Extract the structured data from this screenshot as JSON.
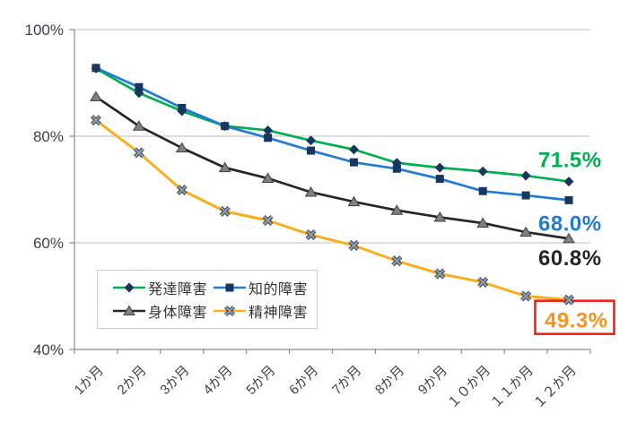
{
  "chart_data": {
    "type": "line",
    "title": "",
    "xlabel": "",
    "ylabel": "",
    "categories": [
      "1か月",
      "2か月",
      "3か月",
      "4か月",
      "5か月",
      "6か月",
      "7か月",
      "8か月",
      "9か月",
      "１０か月",
      "１１か月",
      "１２か月"
    ],
    "ylim": [
      40,
      100
    ],
    "yticks": [
      100,
      80,
      60,
      40
    ],
    "ytick_labels": [
      "100%",
      "80%",
      "60%",
      "40%"
    ],
    "grid": true,
    "legend_position": "bottom-left-inside",
    "colors": {
      "grid": "#c9c9c9",
      "axis": "#8c8c8c",
      "tick_label": "#3a4150",
      "x_label": "#404040",
      "marker_navy": "#17375e",
      "marker_gray": "#808080"
    },
    "series": [
      {
        "id": "developmental",
        "name": "発達障害",
        "color": "#00af50",
        "marker": "diamond",
        "marker_color": "#17375e",
        "values": [
          92.7,
          88.1,
          84.7,
          81.9,
          81.1,
          79.2,
          77.5,
          75.0,
          74.1,
          73.4,
          72.6,
          71.5
        ],
        "end_label": {
          "text": "71.5%",
          "color": "#00af50",
          "boxed": false,
          "dy": -16
        }
      },
      {
        "id": "intellectual",
        "name": "知的障害",
        "color": "#1f7bd3",
        "marker": "square",
        "marker_color": "#17375e",
        "values": [
          92.8,
          89.2,
          85.3,
          81.9,
          79.7,
          77.3,
          75.1,
          73.9,
          72.0,
          69.7,
          68.9,
          68.0
        ],
        "end_label": {
          "text": "68.0%",
          "color": "#1f7bd3",
          "boxed": false,
          "dy": 34
        }
      },
      {
        "id": "physical",
        "name": "身体障害",
        "color": "#262626",
        "marker": "triangle",
        "marker_color": "#808080",
        "values": [
          87.4,
          81.9,
          77.8,
          74.1,
          72.1,
          69.5,
          67.7,
          66.1,
          64.8,
          63.7,
          62.0,
          60.8
        ],
        "end_label": {
          "text": "60.8%",
          "color": "#262626",
          "boxed": false,
          "dy": 30
        }
      },
      {
        "id": "mental",
        "name": "精神障害",
        "color": "#fbad1e",
        "marker": "x",
        "marker_color": "#808080",
        "values": [
          83.0,
          76.9,
          69.9,
          65.9,
          64.2,
          61.5,
          59.5,
          56.6,
          54.2,
          52.6,
          50.0,
          49.3
        ],
        "end_label": {
          "text": "49.3%",
          "color": "#f7941e",
          "boxed": true,
          "box_color": "#ec2318",
          "dy": 31
        }
      }
    ],
    "legend_rows": [
      [
        "発達障害",
        "知的障害"
      ],
      [
        "身体障害",
        "精神障害"
      ]
    ]
  }
}
